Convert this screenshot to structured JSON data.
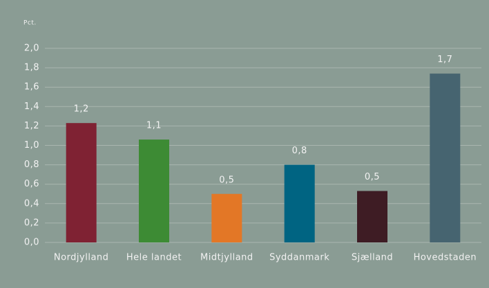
{
  "chart_data": {
    "type": "bar",
    "y_label": "Pct.",
    "categories": [
      "Nordjylland",
      "Hele landet",
      "Midtjylland",
      "Syddanmark",
      "Sjælland",
      "Hovedstaden"
    ],
    "values": [
      1.23,
      1.06,
      0.5,
      0.8,
      0.53,
      1.74
    ],
    "value_labels": [
      "1,2",
      "1,1",
      "0,5",
      "0,8",
      "0,5",
      "1,7"
    ],
    "colors": [
      "#7f2233",
      "#3d8b34",
      "#e37726",
      "#006482",
      "#3e1c24",
      "#466470"
    ],
    "ylim": [
      0,
      2
    ],
    "yticks": [
      {
        "value": 0,
        "label": "0,0"
      },
      {
        "value": 0.2,
        "label": "0,2"
      },
      {
        "value": 0.4,
        "label": "0,4"
      },
      {
        "value": 0.6,
        "label": "0,6"
      },
      {
        "value": 0.8,
        "label": "0,8"
      },
      {
        "value": 1,
        "label": "1,0"
      },
      {
        "value": 1.2,
        "label": "1,2"
      },
      {
        "value": 1.4,
        "label": "1,4"
      },
      {
        "value": 1.6,
        "label": "1,6"
      },
      {
        "value": 1.8,
        "label": "1,8"
      },
      {
        "value": 2,
        "label": "2,0"
      }
    ],
    "grid": true
  }
}
